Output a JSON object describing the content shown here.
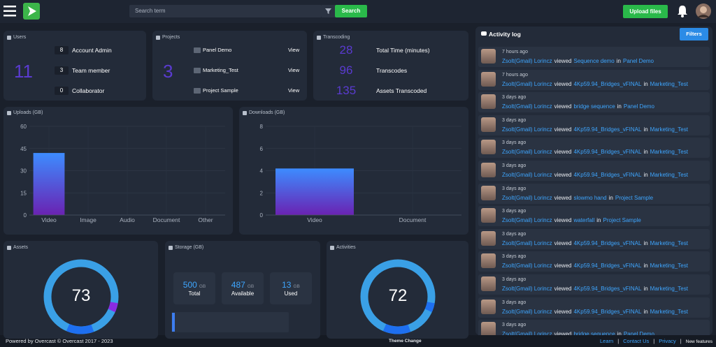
{
  "header": {
    "search_placeholder": "Search term",
    "search_button": "Search",
    "upload_button": "Upload files"
  },
  "users": {
    "title": "Users",
    "total": "11",
    "rows": [
      {
        "count": "8",
        "label": "Account Admin"
      },
      {
        "count": "3",
        "label": "Team member"
      },
      {
        "count": "0",
        "label": "Collaborator"
      }
    ]
  },
  "projects": {
    "title": "Projects",
    "total": "3",
    "rows": [
      {
        "name": "Panel Demo",
        "action": "View"
      },
      {
        "name": "Marketing_Test",
        "action": "View"
      },
      {
        "name": "Project Sample",
        "action": "View"
      }
    ]
  },
  "transcoding": {
    "title": "Transcoding",
    "rows": [
      {
        "value": "28",
        "label": "Total Time (minutes)"
      },
      {
        "value": "96",
        "label": "Transcodes"
      },
      {
        "value": "135",
        "label": "Assets Transcoded"
      }
    ]
  },
  "uploads_chart": {
    "type": "bar",
    "title": "Uploads (GB)",
    "categories": [
      "Video",
      "Image",
      "Audio",
      "Document",
      "Other"
    ],
    "values": [
      42,
      0,
      0,
      0,
      0
    ],
    "ylim": [
      0,
      60
    ],
    "yticks": [
      0,
      15,
      30,
      45,
      60
    ]
  },
  "downloads_chart": {
    "type": "bar",
    "title": "Downloads (GB)",
    "categories": [
      "Video",
      "Document"
    ],
    "values": [
      4.2,
      0
    ],
    "ylim": [
      0,
      8
    ],
    "yticks": [
      0,
      2,
      4,
      6,
      8
    ]
  },
  "assets": {
    "title": "Assets",
    "value": "73"
  },
  "storage": {
    "title": "Storage (GB)",
    "items": [
      {
        "value": "500",
        "unit": "GB",
        "label": "Total"
      },
      {
        "value": "487",
        "unit": "GB",
        "label": "Available"
      },
      {
        "value": "13",
        "unit": "GB",
        "label": "Used"
      }
    ]
  },
  "activities": {
    "title": "Activities",
    "value": "72"
  },
  "activity_log": {
    "title": "Activity log",
    "filters": "Filters",
    "entries": [
      {
        "time": "7 hours ago",
        "user": "Zsolt(Gmail) Lorincz",
        "verb": "viewed",
        "asset": "Sequence demo",
        "prep": "in",
        "project": "Panel Demo"
      },
      {
        "time": "7 hours ago",
        "user": "Zsolt(Gmail) Lorincz",
        "verb": "viewed",
        "asset": "4Kp59.94_Bridges_vFINAL",
        "prep": "in",
        "project": "Marketing_Test"
      },
      {
        "time": "3 days ago",
        "user": "Zsolt(Gmail) Lorincz",
        "verb": "viewed",
        "asset": "bridge sequence",
        "prep": "in",
        "project": "Panel Demo"
      },
      {
        "time": "3 days ago",
        "user": "Zsolt(Gmail) Lorincz",
        "verb": "viewed",
        "asset": "4Kp59.94_Bridges_vFINAL",
        "prep": "in",
        "project": "Marketing_Test"
      },
      {
        "time": "3 days ago",
        "user": "Zsolt(Gmail) Lorincz",
        "verb": "viewed",
        "asset": "4Kp59.94_Bridges_vFINAL",
        "prep": "in",
        "project": "Marketing_Test"
      },
      {
        "time": "3 days ago",
        "user": "Zsolt(Gmail) Lorincz",
        "verb": "viewed",
        "asset": "4Kp59.94_Bridges_vFINAL",
        "prep": "in",
        "project": "Marketing_Test"
      },
      {
        "time": "3 days ago",
        "user": "Zsolt(Gmail) Lorincz",
        "verb": "viewed",
        "asset": "slowmo hand",
        "prep": "in",
        "project": "Project Sample"
      },
      {
        "time": "3 days ago",
        "user": "Zsolt(Gmail) Lorincz",
        "verb": "viewed",
        "asset": "waterfall",
        "prep": "in",
        "project": "Project Sample"
      },
      {
        "time": "3 days ago",
        "user": "Zsolt(Gmail) Lorincz",
        "verb": "viewed",
        "asset": "4Kp59.94_Bridges_vFINAL",
        "prep": "in",
        "project": "Marketing_Test"
      },
      {
        "time": "3 days ago",
        "user": "Zsolt(Gmail) Lorincz",
        "verb": "viewed",
        "asset": "4Kp59.94_Bridges_vFINAL",
        "prep": "in",
        "project": "Marketing_Test"
      },
      {
        "time": "3 days ago",
        "user": "Zsolt(Gmail) Lorincz",
        "verb": "viewed",
        "asset": "4Kp59.94_Bridges_vFINAL",
        "prep": "in",
        "project": "Marketing_Test"
      },
      {
        "time": "3 days ago",
        "user": "Zsolt(Gmail) Lorincz",
        "verb": "viewed",
        "asset": "4Kp59.94_Bridges_vFINAL",
        "prep": "in",
        "project": "Marketing_Test"
      },
      {
        "time": "3 days ago",
        "user": "Zsolt(Gmail) Lorincz",
        "verb": "viewed",
        "asset": "bridge sequence",
        "prep": "in",
        "project": "Panel Demo"
      }
    ]
  },
  "footer": {
    "powered": "Powered by Overcast © Overcast 2017 - 2023",
    "theme": "Theme Change",
    "links": [
      "Learn",
      "Contact Us",
      "Privacy",
      "New features"
    ]
  }
}
